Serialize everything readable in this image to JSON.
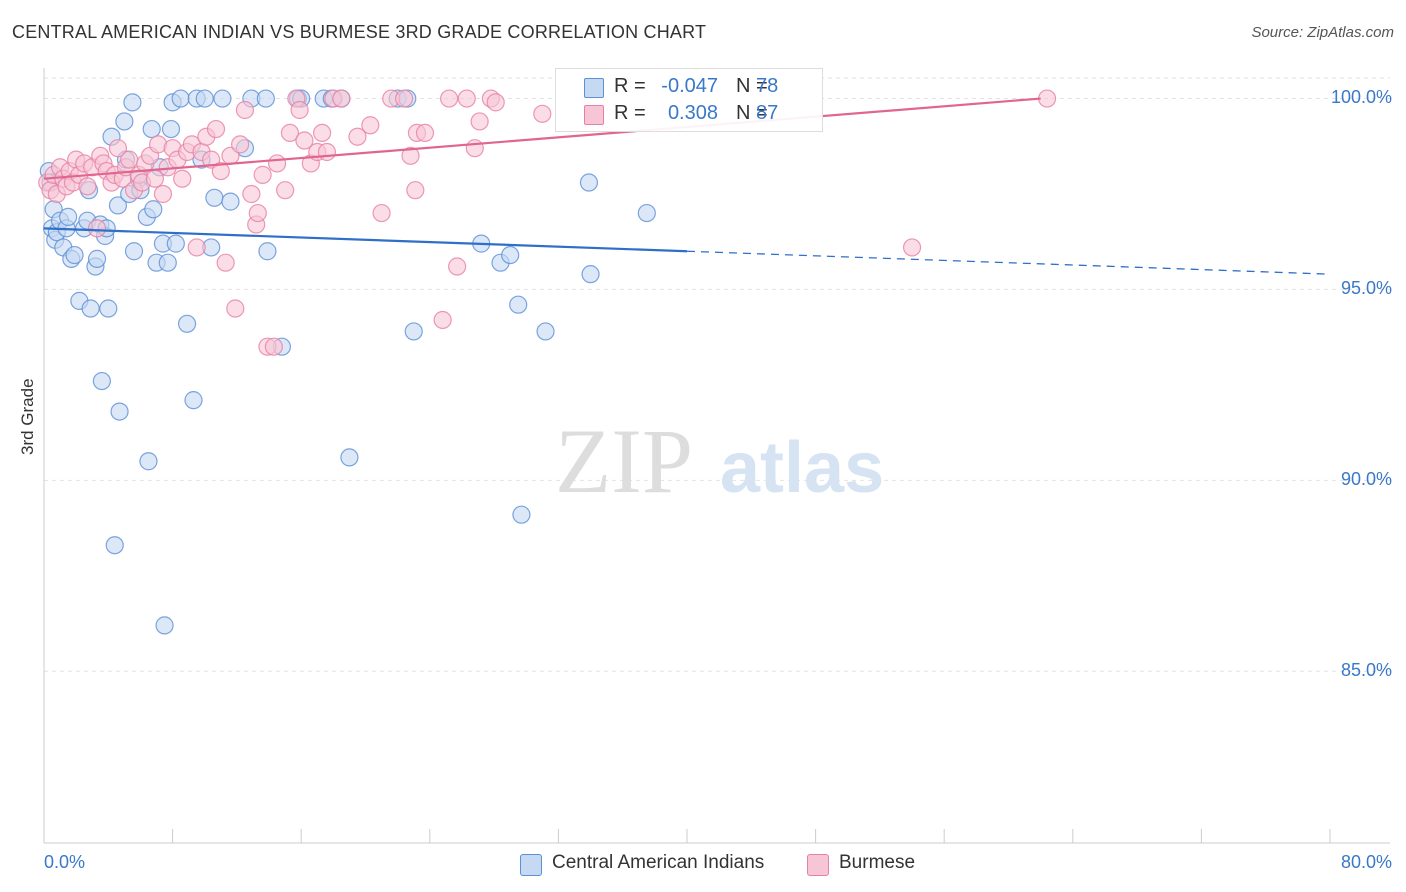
{
  "title": "CENTRAL AMERICAN INDIAN VS BURMESE 3RD GRADE CORRELATION CHART",
  "source": "Source: ZipAtlas.com",
  "watermark": {
    "zip": "ZIP",
    "atlas": "atlas"
  },
  "colors": {
    "blue": "#5b8fd6",
    "blue_fill": "#c5d9f3",
    "blue_line": "#2f6fc7",
    "pink": "#e97fa3",
    "pink_fill": "#f7c6d6",
    "pink_line": "#e0668f",
    "axis_text": "#3a78c9",
    "grid": "#e2e2e2"
  },
  "legend": {
    "rows": [
      {
        "r_label": "R =",
        "r_value": "-0.047",
        "n_label": "N =",
        "n_value": "78"
      },
      {
        "r_label": "R =",
        "r_value": "0.308",
        "n_label": "N =",
        "n_value": "87"
      }
    ]
  },
  "chart_data": {
    "type": "scatter",
    "title": "CENTRAL AMERICAN INDIAN VS BURMESE 3RD GRADE CORRELATION CHART",
    "xlabel": "",
    "ylabel": "3rd Grade",
    "xlim": [
      0,
      80
    ],
    "ylim": [
      80.5,
      100.8
    ],
    "x_tick_labels": [
      "0.0%",
      "80.0%"
    ],
    "y_ticks": [
      85,
      90,
      95,
      100
    ],
    "y_tick_labels": [
      "85.0%",
      "90.0%",
      "95.0%",
      "100.0%"
    ],
    "grid": true,
    "legend_position": "bottom",
    "series": [
      {
        "name": "Central American Indians",
        "r": -0.047,
        "n": 78,
        "trend": {
          "x": [
            0,
            80
          ],
          "y": [
            96.6,
            95.4
          ],
          "solid_until_x": 40
        },
        "points": [
          [
            0.3,
            98.1
          ],
          [
            0.4,
            97.8
          ],
          [
            0.5,
            96.6
          ],
          [
            0.6,
            97.1
          ],
          [
            0.7,
            96.3
          ],
          [
            0.8,
            96.5
          ],
          [
            1.0,
            96.8
          ],
          [
            1.2,
            96.1
          ],
          [
            1.4,
            96.6
          ],
          [
            1.5,
            96.9
          ],
          [
            1.7,
            95.8
          ],
          [
            1.9,
            95.9
          ],
          [
            2.2,
            94.7
          ],
          [
            2.5,
            96.6
          ],
          [
            2.7,
            96.8
          ],
          [
            2.8,
            97.6
          ],
          [
            2.9,
            94.5
          ],
          [
            3.2,
            95.6
          ],
          [
            3.3,
            95.8
          ],
          [
            3.5,
            96.7
          ],
          [
            3.6,
            92.6
          ],
          [
            3.8,
            96.4
          ],
          [
            3.9,
            96.6
          ],
          [
            4.0,
            94.5
          ],
          [
            4.2,
            99.0
          ],
          [
            4.4,
            88.3
          ],
          [
            4.6,
            97.2
          ],
          [
            4.7,
            91.8
          ],
          [
            5.0,
            99.4
          ],
          [
            5.1,
            98.4
          ],
          [
            5.3,
            97.5
          ],
          [
            5.5,
            99.9
          ],
          [
            5.6,
            96.0
          ],
          [
            5.9,
            97.9
          ],
          [
            6.0,
            97.6
          ],
          [
            6.4,
            96.9
          ],
          [
            6.5,
            90.5
          ],
          [
            6.7,
            99.2
          ],
          [
            6.8,
            97.1
          ],
          [
            7.0,
            95.7
          ],
          [
            7.2,
            98.2
          ],
          [
            7.4,
            96.2
          ],
          [
            7.5,
            86.2
          ],
          [
            7.7,
            95.7
          ],
          [
            7.9,
            99.2
          ],
          [
            8.0,
            99.9
          ],
          [
            8.2,
            96.2
          ],
          [
            8.5,
            100.0
          ],
          [
            8.9,
            94.1
          ],
          [
            9.3,
            92.1
          ],
          [
            9.5,
            100.0
          ],
          [
            9.8,
            98.4
          ],
          [
            10.0,
            100.0
          ],
          [
            10.4,
            96.1
          ],
          [
            10.6,
            97.4
          ],
          [
            11.1,
            100.0
          ],
          [
            11.6,
            97.3
          ],
          [
            12.5,
            98.7
          ],
          [
            12.9,
            100.0
          ],
          [
            13.8,
            100.0
          ],
          [
            13.9,
            96.0
          ],
          [
            14.8,
            93.5
          ],
          [
            15.8,
            100.0
          ],
          [
            16.0,
            100.0
          ],
          [
            17.4,
            100.0
          ],
          [
            17.9,
            100.0
          ],
          [
            18.5,
            100.0
          ],
          [
            19.0,
            90.6
          ],
          [
            22.0,
            100.0
          ],
          [
            22.6,
            100.0
          ],
          [
            23.0,
            93.9
          ],
          [
            27.2,
            96.2
          ],
          [
            28.4,
            95.7
          ],
          [
            29.0,
            95.9
          ],
          [
            29.5,
            94.6
          ],
          [
            29.7,
            89.1
          ],
          [
            31.2,
            93.9
          ],
          [
            34.0,
            95.4
          ],
          [
            33.9,
            97.8
          ],
          [
            37.5,
            97.0
          ]
        ]
      },
      {
        "name": "Burmese",
        "r": 0.308,
        "n": 87,
        "trend": {
          "x": [
            0,
            62
          ],
          "y": [
            97.9,
            100.0
          ]
        },
        "points": [
          [
            0.2,
            97.8
          ],
          [
            0.4,
            97.6
          ],
          [
            0.6,
            98.0
          ],
          [
            0.8,
            97.5
          ],
          [
            1.0,
            98.2
          ],
          [
            1.2,
            97.9
          ],
          [
            1.4,
            97.7
          ],
          [
            1.6,
            98.1
          ],
          [
            1.8,
            97.8
          ],
          [
            2.0,
            98.4
          ],
          [
            2.2,
            98.0
          ],
          [
            2.5,
            98.3
          ],
          [
            2.7,
            97.7
          ],
          [
            3.0,
            98.2
          ],
          [
            3.3,
            96.6
          ],
          [
            3.5,
            98.5
          ],
          [
            3.7,
            98.3
          ],
          [
            3.9,
            98.1
          ],
          [
            4.2,
            97.8
          ],
          [
            4.4,
            98.0
          ],
          [
            4.6,
            98.7
          ],
          [
            4.9,
            97.9
          ],
          [
            5.1,
            98.2
          ],
          [
            5.3,
            98.4
          ],
          [
            5.6,
            97.6
          ],
          [
            5.9,
            98.0
          ],
          [
            6.1,
            97.8
          ],
          [
            6.3,
            98.3
          ],
          [
            6.6,
            98.5
          ],
          [
            6.9,
            97.9
          ],
          [
            7.1,
            98.8
          ],
          [
            7.4,
            97.5
          ],
          [
            7.7,
            98.2
          ],
          [
            8.0,
            98.7
          ],
          [
            8.3,
            98.4
          ],
          [
            8.6,
            97.9
          ],
          [
            8.9,
            98.6
          ],
          [
            9.2,
            98.8
          ],
          [
            9.5,
            96.1
          ],
          [
            9.8,
            98.6
          ],
          [
            10.1,
            99.0
          ],
          [
            10.4,
            98.4
          ],
          [
            10.7,
            99.2
          ],
          [
            11.0,
            98.1
          ],
          [
            11.3,
            95.7
          ],
          [
            11.6,
            98.5
          ],
          [
            11.9,
            94.5
          ],
          [
            12.2,
            98.8
          ],
          [
            12.5,
            99.7
          ],
          [
            12.9,
            97.5
          ],
          [
            13.2,
            96.7
          ],
          [
            13.3,
            97.0
          ],
          [
            13.6,
            98.0
          ],
          [
            13.9,
            93.5
          ],
          [
            14.3,
            93.5
          ],
          [
            14.5,
            98.3
          ],
          [
            15.0,
            97.6
          ],
          [
            15.3,
            99.1
          ],
          [
            15.7,
            100.0
          ],
          [
            15.9,
            99.7
          ],
          [
            16.2,
            98.9
          ],
          [
            16.6,
            98.3
          ],
          [
            17.0,
            98.6
          ],
          [
            17.3,
            99.1
          ],
          [
            17.6,
            98.6
          ],
          [
            18.0,
            100.0
          ],
          [
            18.5,
            100.0
          ],
          [
            19.5,
            99.0
          ],
          [
            20.3,
            99.3
          ],
          [
            21.0,
            97.0
          ],
          [
            21.6,
            100.0
          ],
          [
            22.4,
            100.0
          ],
          [
            22.8,
            98.5
          ],
          [
            23.1,
            97.6
          ],
          [
            23.2,
            99.1
          ],
          [
            23.7,
            99.1
          ],
          [
            24.8,
            94.2
          ],
          [
            25.2,
            100.0
          ],
          [
            25.7,
            95.6
          ],
          [
            26.3,
            100.0
          ],
          [
            26.8,
            98.7
          ],
          [
            27.1,
            99.4
          ],
          [
            27.8,
            100.0
          ],
          [
            28.1,
            99.9
          ],
          [
            31.0,
            99.6
          ],
          [
            54.0,
            96.1
          ],
          [
            62.4,
            100.0
          ]
        ]
      }
    ]
  }
}
